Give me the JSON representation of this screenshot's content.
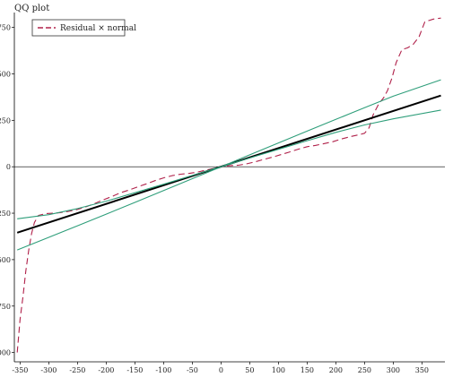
{
  "chart_data": {
    "type": "line",
    "title": "QQ plot",
    "xlabel": "",
    "ylabel": "",
    "xlim": [
      -360,
      390
    ],
    "ylim": [
      -1050,
      830
    ],
    "xticks": [
      -350,
      -300,
      -250,
      -200,
      -150,
      -100,
      -50,
      0,
      50,
      100,
      150,
      200,
      250,
      300,
      350
    ],
    "yticks": [
      -1000,
      -750,
      -500,
      -250,
      0,
      250,
      500,
      750
    ],
    "grid": false,
    "legend_position": "top-left",
    "series": [
      {
        "name": "Residual × normal",
        "color": "#b0214a",
        "dash": "dashed",
        "points": [
          [
            -355,
            -1000
          ],
          [
            -350,
            -820
          ],
          [
            -345,
            -700
          ],
          [
            -340,
            -560
          ],
          [
            -335,
            -450
          ],
          [
            -330,
            -360
          ],
          [
            -325,
            -300
          ],
          [
            -318,
            -262
          ],
          [
            -305,
            -252
          ],
          [
            -290,
            -250
          ],
          [
            -280,
            -247
          ],
          [
            -265,
            -240
          ],
          [
            -250,
            -230
          ],
          [
            -235,
            -215
          ],
          [
            -220,
            -198
          ],
          [
            -205,
            -178
          ],
          [
            -190,
            -160
          ],
          [
            -175,
            -140
          ],
          [
            -160,
            -125
          ],
          [
            -145,
            -108
          ],
          [
            -130,
            -92
          ],
          [
            -115,
            -75
          ],
          [
            -100,
            -60
          ],
          [
            -85,
            -48
          ],
          [
            -70,
            -40
          ],
          [
            -55,
            -36
          ],
          [
            -40,
            -28
          ],
          [
            -25,
            -17
          ],
          [
            -10,
            -8
          ],
          [
            0,
            0
          ],
          [
            15,
            5
          ],
          [
            30,
            8
          ],
          [
            45,
            16
          ],
          [
            60,
            27
          ],
          [
            75,
            40
          ],
          [
            90,
            52
          ],
          [
            105,
            66
          ],
          [
            120,
            80
          ],
          [
            135,
            95
          ],
          [
            150,
            108
          ],
          [
            165,
            115
          ],
          [
            180,
            125
          ],
          [
            195,
            135
          ],
          [
            210,
            150
          ],
          [
            225,
            162
          ],
          [
            240,
            172
          ],
          [
            250,
            180
          ],
          [
            258,
            210
          ],
          [
            265,
            280
          ],
          [
            275,
            340
          ],
          [
            283,
            370
          ],
          [
            290,
            410
          ],
          [
            298,
            480
          ],
          [
            305,
            560
          ],
          [
            315,
            630
          ],
          [
            325,
            640
          ],
          [
            335,
            660
          ],
          [
            345,
            700
          ],
          [
            355,
            780
          ],
          [
            370,
            795
          ],
          [
            383,
            800
          ]
        ]
      },
      {
        "color": "#000000",
        "dash": "solid",
        "width": 2,
        "points": [
          [
            -355,
            -355
          ],
          [
            383,
            383
          ]
        ]
      },
      {
        "color": "#2e9e7a",
        "dash": "solid",
        "points": [
          [
            -355,
            -448
          ],
          [
            -300,
            -380
          ],
          [
            -250,
            -318
          ],
          [
            -200,
            -255
          ],
          [
            -150,
            -192
          ],
          [
            -100,
            -128
          ],
          [
            -50,
            -64
          ],
          [
            0,
            0
          ],
          [
            50,
            64
          ],
          [
            100,
            128
          ],
          [
            150,
            192
          ],
          [
            200,
            255
          ],
          [
            250,
            318
          ],
          [
            300,
            380
          ],
          [
            383,
            468
          ]
        ]
      },
      {
        "color": "#2e9e7a",
        "dash": "solid",
        "points": [
          [
            -355,
            -280
          ],
          [
            -300,
            -258
          ],
          [
            -250,
            -225
          ],
          [
            -200,
            -185
          ],
          [
            -150,
            -140
          ],
          [
            -100,
            -94
          ],
          [
            -50,
            -47
          ],
          [
            0,
            0
          ],
          [
            50,
            47
          ],
          [
            100,
            94
          ],
          [
            150,
            140
          ],
          [
            200,
            185
          ],
          [
            250,
            225
          ],
          [
            300,
            258
          ],
          [
            383,
            305
          ]
        ]
      }
    ]
  }
}
